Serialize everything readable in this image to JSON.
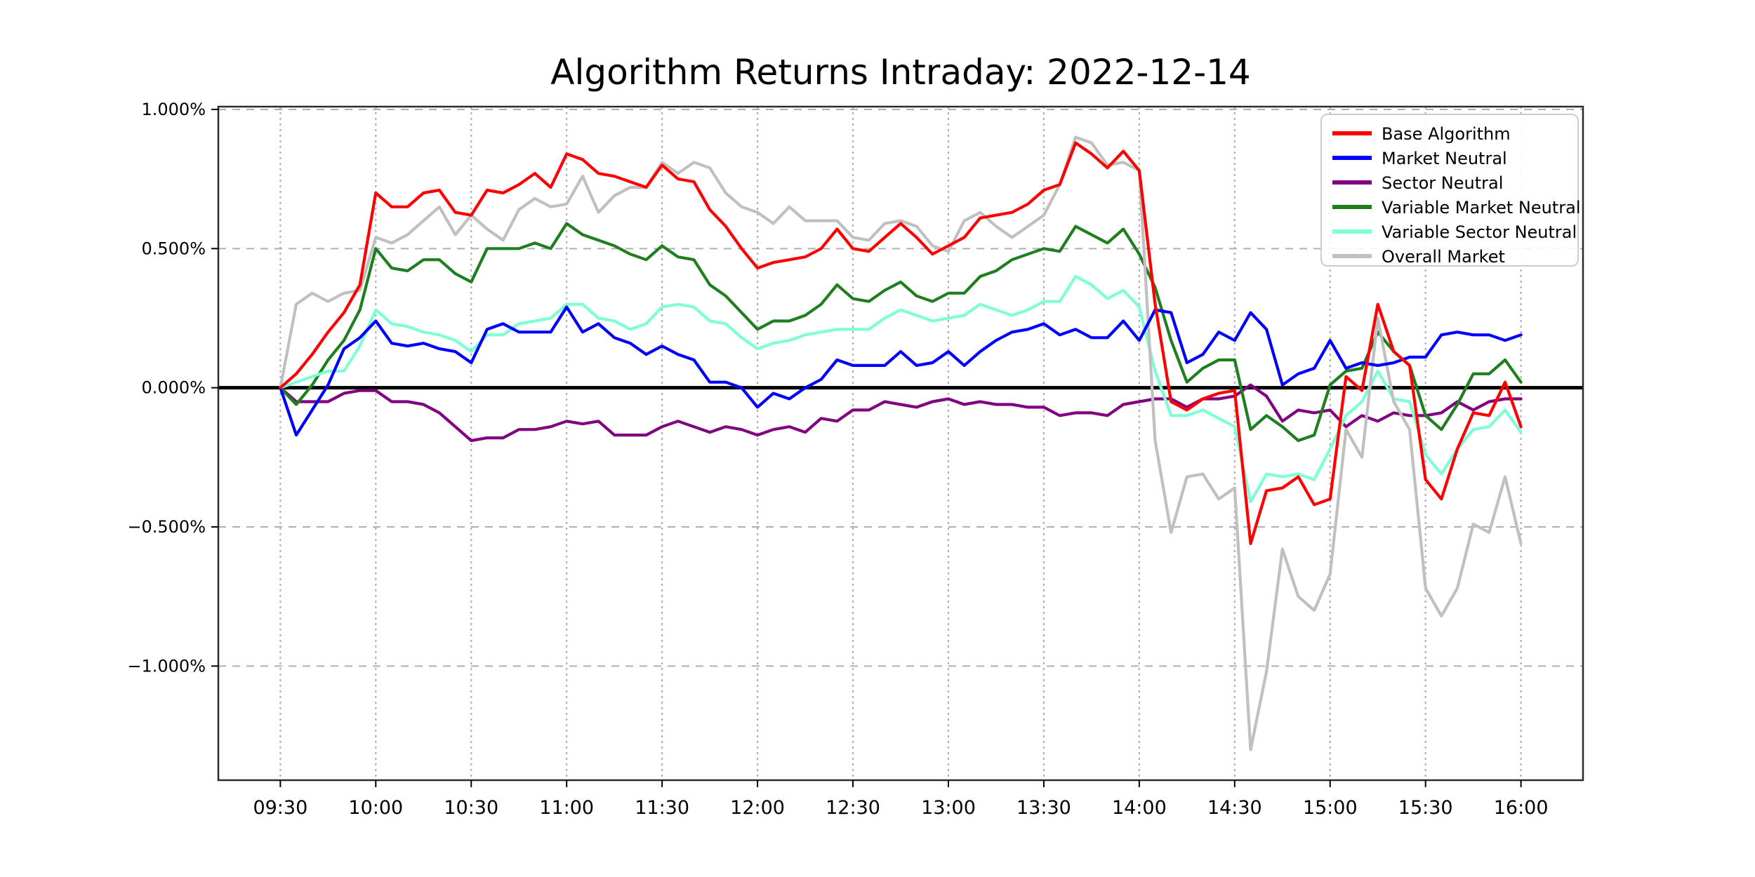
{
  "chart_data": {
    "type": "line",
    "title": "Algorithm Returns Intraday: 2022-12-14",
    "xlabel": "",
    "ylabel": "",
    "grid": "dashed",
    "legend_position": "upper right",
    "ylim": [
      -1.41,
      1.01
    ],
    "x_margin_intervals": 3.9,
    "y_ticks": {
      "values": [
        1.0,
        0.5,
        0.0,
        -0.5,
        -1.0
      ],
      "labels": [
        "1.000%",
        "0.500%",
        "0.000%",
        "−0.500%",
        "−1.000%"
      ]
    },
    "x_ticks": {
      "labels": [
        "09:30",
        "10:00",
        "10:30",
        "11:00",
        "11:30",
        "12:00",
        "12:30",
        "13:00",
        "13:30",
        "14:00",
        "14:30",
        "15:00",
        "15:30",
        "16:00"
      ],
      "every_nth_point": 6
    },
    "zero_line": {
      "show": true,
      "color": "#000000",
      "width": 5
    },
    "x": [
      "09:30",
      "09:35",
      "09:40",
      "09:45",
      "09:50",
      "09:55",
      "10:00",
      "10:05",
      "10:10",
      "10:15",
      "10:20",
      "10:25",
      "10:30",
      "10:35",
      "10:40",
      "10:45",
      "10:50",
      "10:55",
      "11:00",
      "11:05",
      "11:10",
      "11:15",
      "11:20",
      "11:25",
      "11:30",
      "11:35",
      "11:40",
      "11:45",
      "11:50",
      "11:55",
      "12:00",
      "12:05",
      "12:10",
      "12:15",
      "12:20",
      "12:25",
      "12:30",
      "12:35",
      "12:40",
      "12:45",
      "12:50",
      "12:55",
      "13:00",
      "13:05",
      "13:10",
      "13:15",
      "13:20",
      "13:25",
      "13:30",
      "13:35",
      "13:40",
      "13:45",
      "13:50",
      "13:55",
      "14:00",
      "14:05",
      "14:10",
      "14:15",
      "14:20",
      "14:25",
      "14:30",
      "14:35",
      "14:40",
      "14:45",
      "14:50",
      "14:55",
      "15:00",
      "15:05",
      "15:10",
      "15:15",
      "15:20",
      "15:25",
      "15:30",
      "15:35",
      "15:40",
      "15:45",
      "15:50",
      "15:55",
      "16:00"
    ],
    "series": [
      {
        "name": "Base Algorithm",
        "color": "#ff0000",
        "values": [
          0.0,
          0.05,
          0.12,
          0.2,
          0.27,
          0.37,
          0.7,
          0.65,
          0.65,
          0.7,
          0.71,
          0.63,
          0.62,
          0.71,
          0.7,
          0.73,
          0.77,
          0.72,
          0.84,
          0.82,
          0.77,
          0.76,
          0.74,
          0.72,
          0.8,
          0.75,
          0.74,
          0.64,
          0.58,
          0.5,
          0.43,
          0.45,
          0.46,
          0.47,
          0.5,
          0.57,
          0.5,
          0.49,
          0.54,
          0.59,
          0.54,
          0.48,
          0.51,
          0.54,
          0.61,
          0.62,
          0.63,
          0.66,
          0.71,
          0.73,
          0.88,
          0.84,
          0.79,
          0.85,
          0.78,
          0.3,
          -0.05,
          -0.08,
          -0.04,
          -0.02,
          -0.01,
          -0.56,
          -0.37,
          -0.36,
          -0.32,
          -0.42,
          -0.4,
          0.04,
          -0.01,
          0.3,
          0.13,
          0.08,
          -0.33,
          -0.4,
          -0.22,
          -0.09,
          -0.1,
          0.02,
          -0.14
        ]
      },
      {
        "name": "Market Neutral",
        "color": "#0000ff",
        "values": [
          0.0,
          -0.17,
          -0.08,
          0.01,
          0.14,
          0.18,
          0.24,
          0.16,
          0.15,
          0.16,
          0.14,
          0.13,
          0.09,
          0.21,
          0.23,
          0.2,
          0.2,
          0.2,
          0.29,
          0.2,
          0.23,
          0.18,
          0.16,
          0.12,
          0.15,
          0.12,
          0.1,
          0.02,
          0.02,
          0.0,
          -0.07,
          -0.02,
          -0.04,
          0.0,
          0.03,
          0.1,
          0.08,
          0.08,
          0.08,
          0.13,
          0.08,
          0.09,
          0.13,
          0.08,
          0.13,
          0.17,
          0.2,
          0.21,
          0.23,
          0.19,
          0.21,
          0.18,
          0.18,
          0.24,
          0.17,
          0.28,
          0.27,
          0.09,
          0.12,
          0.2,
          0.17,
          0.27,
          0.21,
          0.01,
          0.05,
          0.07,
          0.17,
          0.07,
          0.09,
          0.08,
          0.09,
          0.11,
          0.11,
          0.19,
          0.2,
          0.19,
          0.19,
          0.17,
          0.19
        ]
      },
      {
        "name": "Sector Neutral",
        "color": "#800080",
        "values": [
          0.0,
          -0.05,
          -0.05,
          -0.05,
          -0.02,
          -0.01,
          -0.01,
          -0.05,
          -0.05,
          -0.06,
          -0.09,
          -0.14,
          -0.19,
          -0.18,
          -0.18,
          -0.15,
          -0.15,
          -0.14,
          -0.12,
          -0.13,
          -0.12,
          -0.17,
          -0.17,
          -0.17,
          -0.14,
          -0.12,
          -0.14,
          -0.16,
          -0.14,
          -0.15,
          -0.17,
          -0.15,
          -0.14,
          -0.16,
          -0.11,
          -0.12,
          -0.08,
          -0.08,
          -0.05,
          -0.06,
          -0.07,
          -0.05,
          -0.04,
          -0.06,
          -0.05,
          -0.06,
          -0.06,
          -0.07,
          -0.07,
          -0.1,
          -0.09,
          -0.09,
          -0.1,
          -0.06,
          -0.05,
          -0.04,
          -0.04,
          -0.07,
          -0.04,
          -0.04,
          -0.03,
          0.01,
          -0.03,
          -0.12,
          -0.08,
          -0.09,
          -0.08,
          -0.14,
          -0.1,
          -0.12,
          -0.09,
          -0.1,
          -0.1,
          -0.09,
          -0.05,
          -0.08,
          -0.05,
          -0.04,
          -0.04
        ]
      },
      {
        "name": "Variable Market Neutral",
        "color": "#1f7f1f",
        "values": [
          0.0,
          -0.06,
          0.01,
          0.1,
          0.17,
          0.28,
          0.5,
          0.43,
          0.42,
          0.46,
          0.46,
          0.41,
          0.38,
          0.5,
          0.5,
          0.5,
          0.52,
          0.5,
          0.59,
          0.55,
          0.53,
          0.51,
          0.48,
          0.46,
          0.51,
          0.47,
          0.46,
          0.37,
          0.33,
          0.27,
          0.21,
          0.24,
          0.24,
          0.26,
          0.3,
          0.37,
          0.32,
          0.31,
          0.35,
          0.38,
          0.33,
          0.31,
          0.34,
          0.34,
          0.4,
          0.42,
          0.46,
          0.48,
          0.5,
          0.49,
          0.58,
          0.55,
          0.52,
          0.57,
          0.48,
          0.36,
          0.17,
          0.02,
          0.07,
          0.1,
          0.1,
          -0.15,
          -0.1,
          -0.14,
          -0.19,
          -0.17,
          0.01,
          0.06,
          0.07,
          0.2,
          0.13,
          0.08,
          -0.1,
          -0.15,
          -0.06,
          0.05,
          0.05,
          0.1,
          0.02
        ]
      },
      {
        "name": "Variable Sector Neutral",
        "color": "#7fffd4",
        "values": [
          0.0,
          0.02,
          0.04,
          0.06,
          0.06,
          0.15,
          0.28,
          0.23,
          0.22,
          0.2,
          0.19,
          0.17,
          0.13,
          0.19,
          0.19,
          0.23,
          0.24,
          0.25,
          0.3,
          0.3,
          0.25,
          0.24,
          0.21,
          0.23,
          0.29,
          0.3,
          0.29,
          0.24,
          0.23,
          0.18,
          0.14,
          0.16,
          0.17,
          0.19,
          0.2,
          0.21,
          0.21,
          0.21,
          0.25,
          0.28,
          0.26,
          0.24,
          0.25,
          0.26,
          0.3,
          0.28,
          0.26,
          0.28,
          0.31,
          0.31,
          0.4,
          0.37,
          0.32,
          0.35,
          0.29,
          0.06,
          -0.1,
          -0.1,
          -0.08,
          -0.11,
          -0.14,
          -0.41,
          -0.31,
          -0.32,
          -0.31,
          -0.33,
          -0.22,
          -0.1,
          -0.05,
          0.06,
          -0.04,
          -0.05,
          -0.24,
          -0.31,
          -0.22,
          -0.15,
          -0.14,
          -0.08,
          -0.16
        ]
      },
      {
        "name": "Overall Market",
        "color": "#c0c0c0",
        "values": [
          0.0,
          0.3,
          0.34,
          0.31,
          0.34,
          0.35,
          0.54,
          0.52,
          0.55,
          0.6,
          0.65,
          0.55,
          0.62,
          0.57,
          0.53,
          0.64,
          0.68,
          0.65,
          0.66,
          0.76,
          0.63,
          0.69,
          0.72,
          0.72,
          0.81,
          0.77,
          0.81,
          0.79,
          0.7,
          0.65,
          0.63,
          0.59,
          0.65,
          0.6,
          0.6,
          0.6,
          0.54,
          0.53,
          0.59,
          0.6,
          0.58,
          0.51,
          0.49,
          0.6,
          0.63,
          0.58,
          0.54,
          0.58,
          0.62,
          0.73,
          0.9,
          0.88,
          0.8,
          0.81,
          0.78,
          -0.19,
          -0.52,
          -0.32,
          -0.31,
          -0.4,
          -0.36,
          -1.3,
          -1.02,
          -0.58,
          -0.75,
          -0.8,
          -0.67,
          -0.15,
          -0.25,
          0.25,
          -0.05,
          -0.15,
          -0.72,
          -0.82,
          -0.72,
          -0.49,
          -0.52,
          -0.32,
          -0.56
        ]
      }
    ]
  }
}
